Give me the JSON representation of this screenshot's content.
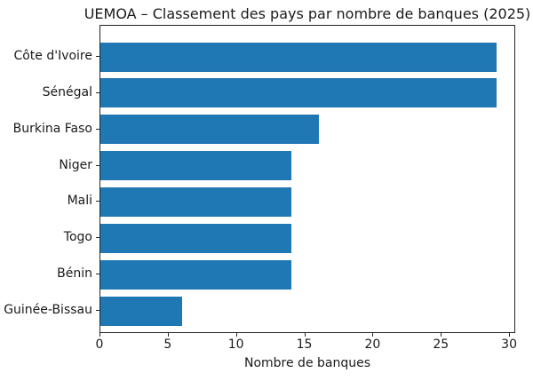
{
  "chart_data": {
    "type": "bar",
    "orientation": "horizontal",
    "title": "UEMOA – Classement des pays par nombre de banques (2025)",
    "xlabel": "Nombre de banques",
    "ylabel": "",
    "categories": [
      "Côte d'Ivoire",
      "Sénégal",
      "Burkina Faso",
      "Niger",
      "Mali",
      "Togo",
      "Bénin",
      "Guinée-Bissau"
    ],
    "values": [
      29,
      29,
      16,
      14,
      14,
      14,
      14,
      6
    ],
    "xticks": [
      0,
      5,
      10,
      15,
      20,
      25,
      30
    ],
    "xlim": [
      0,
      30.45
    ],
    "grid": false,
    "legend": null,
    "bar_color": "#1f77b4",
    "axis_color": "#262626",
    "text_color": "#1a1a1a",
    "background_color": "#ffffff"
  }
}
